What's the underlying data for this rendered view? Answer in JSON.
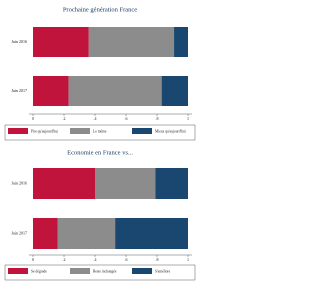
{
  "chart_data": [
    {
      "type": "bar",
      "orientation": "horizontal",
      "stacked": true,
      "title": "Prochaine génération France",
      "categories": [
        "Juin 2016",
        "Juin 2017"
      ],
      "series": [
        {
          "name": "Pire qu'aujourd'hui",
          "color": "#c0143c",
          "values": [
            0.36,
            0.23
          ]
        },
        {
          "name": "Le même",
          "color": "#8c8c8c",
          "values": [
            0.55,
            0.6
          ]
        },
        {
          "name": "Mieux qu'aujourd'hui",
          "color": "#1a476f",
          "values": [
            0.09,
            0.17
          ]
        }
      ],
      "xlim": [
        0,
        1
      ],
      "xticks": [
        0,
        {
          "value": 0.2,
          "label": ".2"
        },
        {
          "value": 0.4,
          "label": ".4"
        },
        {
          "value": 0.6,
          "label": ".6"
        },
        {
          "value": 0.8,
          "label": ".8"
        },
        1
      ]
    },
    {
      "type": "bar",
      "orientation": "horizontal",
      "stacked": true,
      "title": "Economie en France vs...",
      "categories": [
        "Juin 2016",
        "Juin 2017"
      ],
      "series": [
        {
          "name": "Se dégrade",
          "color": "#c0143c",
          "values": [
            0.4,
            0.16
          ]
        },
        {
          "name": "Reste inchangée",
          "color": "#8c8c8c",
          "values": [
            0.39,
            0.37
          ]
        },
        {
          "name": "S'améliore",
          "color": "#1a476f",
          "values": [
            0.21,
            0.47
          ]
        }
      ],
      "xlim": [
        0,
        1
      ],
      "xticks": [
        0,
        {
          "value": 0.2,
          "label": ".2"
        },
        {
          "value": 0.4,
          "label": ".4"
        },
        {
          "value": 0.6,
          "label": ".6"
        },
        {
          "value": 0.8,
          "label": ".8"
        },
        1
      ]
    }
  ]
}
